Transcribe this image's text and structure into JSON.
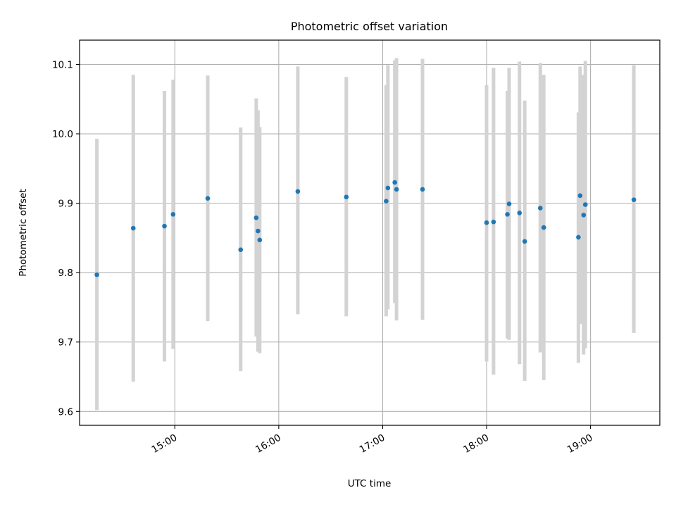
{
  "chart_data": {
    "type": "scatter",
    "title": "Photometric offset variation",
    "xlabel": "UTC time",
    "ylabel": "Photometric offset",
    "x_unit": "UTC time (HH:MM)",
    "xlim": [
      "14:05",
      "19:40"
    ],
    "ylim": [
      9.58,
      10.135
    ],
    "x_ticks": [
      "15:00",
      "16:00",
      "17:00",
      "18:00",
      "19:00"
    ],
    "y_ticks": [
      9.6,
      9.7,
      9.8,
      9.9,
      10.0,
      10.1
    ],
    "y_tick_labels": [
      "9.6",
      "9.7",
      "9.8",
      "9.9",
      "10.0",
      "10.1"
    ],
    "grid": true,
    "point_color": "#1f77b4",
    "errorbar_color": "#d3d3d3",
    "points": [
      {
        "x": "14:15",
        "y": 9.797,
        "low": 9.602,
        "high": 9.993
      },
      {
        "x": "14:36",
        "y": 9.864,
        "low": 9.643,
        "high": 10.085
      },
      {
        "x": "14:54",
        "y": 9.867,
        "low": 9.672,
        "high": 10.062
      },
      {
        "x": "14:59",
        "y": 9.884,
        "low": 9.69,
        "high": 10.078
      },
      {
        "x": "15:19",
        "y": 9.907,
        "low": 9.73,
        "high": 10.084
      },
      {
        "x": "15:38",
        "y": 9.833,
        "low": 9.658,
        "high": 10.009
      },
      {
        "x": "15:47",
        "y": 9.879,
        "low": 9.708,
        "high": 10.051
      },
      {
        "x": "15:48",
        "y": 9.86,
        "low": 9.686,
        "high": 10.034
      },
      {
        "x": "15:49",
        "y": 9.847,
        "low": 9.684,
        "high": 10.01
      },
      {
        "x": "16:11",
        "y": 9.917,
        "low": 9.74,
        "high": 10.097
      },
      {
        "x": "16:39",
        "y": 9.909,
        "low": 9.737,
        "high": 10.082
      },
      {
        "x": "17:02",
        "y": 9.903,
        "low": 9.737,
        "high": 10.07
      },
      {
        "x": "17:03",
        "y": 9.922,
        "low": 9.747,
        "high": 10.099
      },
      {
        "x": "17:07",
        "y": 9.93,
        "low": 9.756,
        "high": 10.106
      },
      {
        "x": "17:08",
        "y": 9.92,
        "low": 9.731,
        "high": 10.109
      },
      {
        "x": "17:23",
        "y": 9.92,
        "low": 9.732,
        "high": 10.108
      },
      {
        "x": "18:00",
        "y": 9.872,
        "low": 9.672,
        "high": 10.07
      },
      {
        "x": "18:04",
        "y": 9.873,
        "low": 9.653,
        "high": 10.095
      },
      {
        "x": "18:12",
        "y": 9.884,
        "low": 9.705,
        "high": 10.062
      },
      {
        "x": "18:13",
        "y": 9.899,
        "low": 9.703,
        "high": 10.095
      },
      {
        "x": "18:19",
        "y": 9.886,
        "low": 9.668,
        "high": 10.104
      },
      {
        "x": "18:22",
        "y": 9.845,
        "low": 9.644,
        "high": 10.048
      },
      {
        "x": "18:31",
        "y": 9.893,
        "low": 9.685,
        "high": 10.102
      },
      {
        "x": "18:33",
        "y": 9.865,
        "low": 9.645,
        "high": 10.085
      },
      {
        "x": "18:53",
        "y": 9.851,
        "low": 9.67,
        "high": 10.031
      },
      {
        "x": "18:54",
        "y": 9.911,
        "low": 9.726,
        "high": 10.097
      },
      {
        "x": "18:56",
        "y": 9.883,
        "low": 9.682,
        "high": 10.085
      },
      {
        "x": "18:57",
        "y": 9.898,
        "low": 9.691,
        "high": 10.105
      },
      {
        "x": "19:25",
        "y": 9.905,
        "low": 9.713,
        "high": 10.099
      }
    ]
  }
}
